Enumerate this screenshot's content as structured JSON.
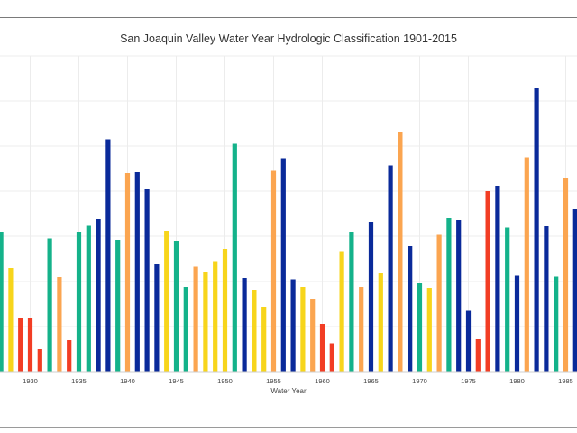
{
  "chart_data": {
    "type": "bar",
    "title": "San Joaquin Valley Water Year Hydrologic Classification 1901-2015",
    "xlabel": "Water Year",
    "ylabel": "",
    "x_ticks": [
      1930,
      1935,
      1940,
      1945,
      1950,
      1955,
      1960,
      1965,
      1970,
      1975,
      1980,
      1985
    ],
    "visible_x_range": [
      1927,
      1986
    ],
    "ylim": [
      0,
      7
    ],
    "grid": true,
    "legend": "none",
    "colors": {
      "W": "#0a2a9a",
      "AN": "#14b28a",
      "BN": "#f7d51b",
      "D": "#fba550",
      "C": "#f23d24"
    },
    "years": [
      1927,
      1928,
      1929,
      1930,
      1931,
      1932,
      1933,
      1934,
      1935,
      1936,
      1937,
      1938,
      1939,
      1940,
      1941,
      1942,
      1943,
      1944,
      1945,
      1946,
      1947,
      1948,
      1949,
      1950,
      1951,
      1952,
      1953,
      1954,
      1955,
      1956,
      1957,
      1958,
      1959,
      1960,
      1961,
      1962,
      1963,
      1964,
      1965,
      1966,
      1967,
      1968,
      1969,
      1970,
      1971,
      1972,
      1973,
      1974,
      1975,
      1976,
      1977,
      1978,
      1979,
      1980,
      1981,
      1982,
      1983,
      1984,
      1985,
      1986
    ],
    "values": [
      3.1,
      2.3,
      1.2,
      1.2,
      0.5,
      2.95,
      2.1,
      0.7,
      3.1,
      3.25,
      3.38,
      5.15,
      2.92,
      4.4,
      4.42,
      4.05,
      2.38,
      3.12,
      2.9,
      1.88,
      2.33,
      2.2,
      2.45,
      2.72,
      5.05,
      2.08,
      1.81,
      1.44,
      4.45,
      4.73,
      2.05,
      1.88,
      1.62,
      1.06,
      0.63,
      2.67,
      3.1,
      1.88,
      3.32,
      2.18,
      4.57,
      5.32,
      2.78,
      1.96,
      1.86,
      3.05,
      3.4,
      3.36,
      1.35,
      0.72,
      4.0,
      4.12,
      3.19,
      2.13,
      4.75,
      6.3,
      3.22,
      2.11,
      4.3,
      3.6
    ],
    "classes": [
      "AN",
      "BN",
      "C",
      "C",
      "C",
      "AN",
      "D",
      "C",
      "AN",
      "AN",
      "W",
      "W",
      "AN",
      "D",
      "W",
      "W",
      "W",
      "BN",
      "AN",
      "AN",
      "D",
      "BN",
      "BN",
      "BN",
      "AN",
      "W",
      "BN",
      "BN",
      "D",
      "W",
      "W",
      "BN",
      "D",
      "C",
      "C",
      "BN",
      "AN",
      "D",
      "W",
      "BN",
      "W",
      "D",
      "W",
      "AN",
      "BN",
      "D",
      "AN",
      "W",
      "W",
      "C",
      "C",
      "W",
      "AN",
      "W",
      "D",
      "W",
      "W",
      "AN",
      "D",
      "W"
    ]
  }
}
